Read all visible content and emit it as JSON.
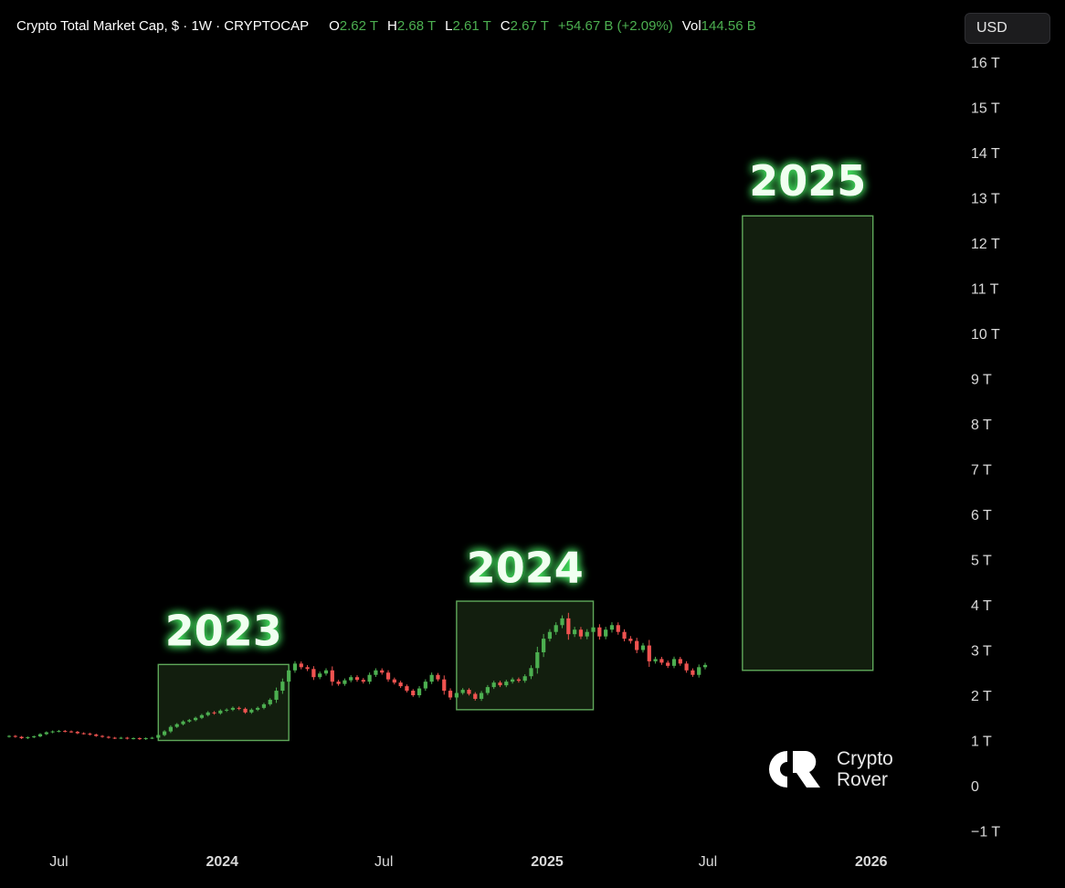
{
  "header": {
    "symbol": "Crypto Total Market Cap, $ · 1W · CRYPTOCAP",
    "open_label": "O",
    "open_value": "2.62 T",
    "high_label": "H",
    "high_value": "2.68 T",
    "low_label": "L",
    "low_value": "2.61 T",
    "close_label": "C",
    "close_value": "2.67 T",
    "change": "+54.67 B (+2.09%)",
    "volume_label": "Vol",
    "volume_value": "144.56 B"
  },
  "currency_button": "USD",
  "watermark": {
    "line1": "Crypto",
    "line2": "Rover"
  },
  "colors": {
    "background": "#000000",
    "up": "#4caf50",
    "down": "#ef5350",
    "box_fill": "#13200f",
    "box_stroke": "#5fa85a",
    "annotation_text": "#f0fff0",
    "annotation_glow": "#4cff6a",
    "axis_text": "#d9d9d9"
  },
  "chart_data": {
    "type": "candlestick",
    "title": "Crypto Total Market Cap, $ · 1W · CRYPTOCAP",
    "y_unit": "T",
    "y_ticks": [
      16,
      15,
      14,
      13,
      12,
      11,
      10,
      9,
      8,
      7,
      6,
      5,
      4,
      3,
      2,
      1,
      0,
      -1
    ],
    "y_tick_labels": [
      "16 T",
      "15 T",
      "14 T",
      "13 T",
      "12 T",
      "11 T",
      "10 T",
      "9 T",
      "8 T",
      "7 T",
      "6 T",
      "5 T",
      "4 T",
      "3 T",
      "2 T",
      "1 T",
      "0",
      "−1 T"
    ],
    "ylim": [
      -1,
      16
    ],
    "x_ticks": [
      {
        "date": "2023-07-01",
        "label": "Jul",
        "bold": false
      },
      {
        "date": "2024-01-01",
        "label": "2024",
        "bold": true
      },
      {
        "date": "2024-07-01",
        "label": "Jul",
        "bold": false
      },
      {
        "date": "2025-01-01",
        "label": "2025",
        "bold": true
      },
      {
        "date": "2025-07-01",
        "label": "Jul",
        "bold": false
      },
      {
        "date": "2026-01-01",
        "label": "2026",
        "bold": true
      }
    ],
    "xlim": [
      "2023-05-06",
      "2026-04-10"
    ],
    "first_week": "2023-05-06",
    "closes": [
      1.1,
      1.08,
      1.05,
      1.07,
      1.09,
      1.14,
      1.18,
      1.2,
      1.21,
      1.2,
      1.19,
      1.16,
      1.15,
      1.13,
      1.1,
      1.08,
      1.06,
      1.05,
      1.06,
      1.04,
      1.05,
      1.03,
      1.05,
      1.06,
      1.12,
      1.2,
      1.3,
      1.36,
      1.42,
      1.45,
      1.5,
      1.56,
      1.62,
      1.6,
      1.66,
      1.68,
      1.72,
      1.7,
      1.62,
      1.68,
      1.72,
      1.8,
      1.9,
      2.1,
      2.3,
      2.55,
      2.7,
      2.62,
      2.58,
      2.4,
      2.48,
      2.55,
      2.3,
      2.25,
      2.33,
      2.4,
      2.34,
      2.3,
      2.45,
      2.55,
      2.5,
      2.35,
      2.28,
      2.2,
      2.1,
      2.0,
      2.15,
      2.3,
      2.45,
      2.35,
      2.1,
      1.95,
      2.05,
      2.12,
      2.03,
      1.92,
      2.05,
      2.18,
      2.28,
      2.22,
      2.3,
      2.35,
      2.32,
      2.42,
      2.6,
      2.95,
      3.25,
      3.4,
      3.55,
      3.7,
      3.35,
      3.45,
      3.3,
      3.4,
      3.5,
      3.3,
      3.45,
      3.55,
      3.4,
      3.25,
      3.2,
      3.0,
      3.1,
      2.75,
      2.8,
      2.72,
      2.65,
      2.8,
      2.7,
      2.55,
      2.45,
      2.62,
      2.67
    ],
    "annotations": [
      {
        "label": "2023",
        "x0": "2023-10-21",
        "x1": "2024-03-16",
        "y0": 1.0,
        "y1": 2.68,
        "label_y": 3.1
      },
      {
        "label": "2024",
        "x0": "2024-09-21",
        "x1": "2025-02-22",
        "y0": 1.68,
        "y1": 4.08,
        "label_y": 4.5
      },
      {
        "label": "2025",
        "x0": "2025-08-09",
        "x1": "2026-01-03",
        "y0": 2.55,
        "y1": 12.6,
        "label_y": 13.05
      }
    ]
  }
}
